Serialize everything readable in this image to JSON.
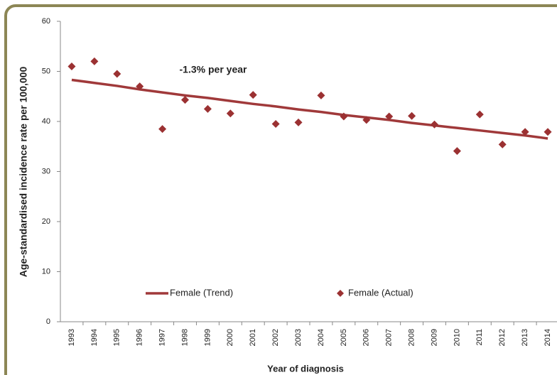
{
  "chart_data": {
    "type": "line",
    "annotation": "-1.3% per year",
    "x_label": "Year of diagnosis",
    "y_label": "Age-standardised incidence rate per 100,000",
    "categories": [
      "1993",
      "1994",
      "1995",
      "1996",
      "1997",
      "1998",
      "1999",
      "2000",
      "2001",
      "2002",
      "2003",
      "2004",
      "2005",
      "2006",
      "2007",
      "2008",
      "2009",
      "2010",
      "2011",
      "2012",
      "2013",
      "2014"
    ],
    "series": [
      {
        "name": "Female (Trend)",
        "color": "#a0393a",
        "style": "line",
        "values": [
          48.3,
          47.7,
          47.1,
          46.4,
          45.8,
          45.2,
          44.7,
          44.1,
          43.5,
          43.0,
          42.4,
          41.9,
          41.3,
          40.8,
          40.3,
          39.7,
          39.2,
          38.7,
          38.2,
          37.7,
          37.2,
          36.6
        ]
      },
      {
        "name": "Female (Actual)",
        "color": "#9b3132",
        "style": "diamond",
        "values": [
          51,
          52,
          49.5,
          47,
          38.5,
          44.3,
          42.5,
          41.6,
          45.3,
          39.5,
          39.8,
          45.2,
          41,
          40.3,
          41,
          41.1,
          39.4,
          34.1,
          41.4,
          35.4,
          37.9,
          37.9
        ]
      }
    ],
    "ylim": [
      0,
      60
    ],
    "yticks": [
      0,
      10,
      20,
      30,
      40,
      50,
      60
    ],
    "grid": false
  }
}
